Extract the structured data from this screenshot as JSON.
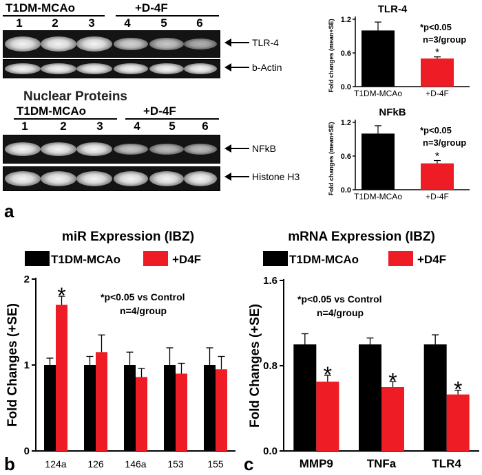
{
  "panel_a": {
    "letter": "a",
    "blot1": {
      "group_labels": [
        "T1DM-MCAo",
        "+D-4F"
      ],
      "lanes": [
        "1",
        "2",
        "3",
        "4",
        "5",
        "6"
      ],
      "bands": [
        "TLR-4",
        "b-Actin"
      ]
    },
    "blot2": {
      "title": "Nuclear Proteins",
      "group_labels": [
        "T1DM-MCAo",
        "+D-4F"
      ],
      "lanes": [
        "1",
        "2",
        "3",
        "4",
        "5",
        "6"
      ],
      "bands": [
        "NFkB",
        "Histone H3"
      ]
    }
  },
  "panel_b": {
    "letter": "b"
  },
  "panel_c": {
    "letter": "c"
  },
  "colors": {
    "control": "#000000",
    "treated": "#ee1c24"
  },
  "chart_data": [
    {
      "id": "tlr4",
      "type": "bar",
      "title": "TLR-4",
      "ylabel": "Fold changes (mean+SE)",
      "ylim": [
        0,
        1.2
      ],
      "yticks": [
        "0.0",
        "0.6",
        "1.2"
      ],
      "categories": [
        "T1DM-MCAo",
        "+D-4F"
      ],
      "values": [
        1.0,
        0.5
      ],
      "errors": [
        0.15,
        0.03
      ],
      "stars": [
        false,
        true
      ],
      "star": "*",
      "annotation": [
        "*p<0.05",
        "n=3/group"
      ]
    },
    {
      "id": "nfkb",
      "type": "bar",
      "title": "NFkB",
      "ylabel": "Fold changes (mean+SE)",
      "ylim": [
        0,
        1.2
      ],
      "yticks": [
        "0.0",
        "0.6",
        "1.2"
      ],
      "categories": [
        "T1DM-MCAo",
        "+D-4F"
      ],
      "values": [
        1.0,
        0.47
      ],
      "errors": [
        0.14,
        0.05
      ],
      "stars": [
        false,
        true
      ],
      "star": "*",
      "annotation": [
        "*p<0.05",
        "n=3/group"
      ]
    },
    {
      "id": "mir",
      "type": "bar",
      "title": "miR Expression (IBZ)",
      "ylabel": "Fold Changes (+SE)",
      "ylim": [
        0,
        2
      ],
      "yticks": [
        "0",
        "1",
        "2"
      ],
      "categories": [
        "124a",
        "126",
        "146a",
        "153",
        "155"
      ],
      "legend": [
        "T1DM-MCAo",
        "+D4F"
      ],
      "series": [
        {
          "name": "T1DM-MCAo",
          "values": [
            1.0,
            1.0,
            1.0,
            1.0,
            1.0
          ],
          "errors": [
            0.08,
            0.1,
            0.15,
            0.2,
            0.2
          ]
        },
        {
          "name": "+D4F",
          "values": [
            1.7,
            1.15,
            0.86,
            0.9,
            0.95
          ],
          "errors": [
            0.1,
            0.2,
            0.1,
            0.12,
            0.15
          ]
        }
      ],
      "stars": [
        true,
        false,
        false,
        false,
        false
      ],
      "star": "*",
      "annotation": [
        "*p<0.05 vs Control",
        "n=4/group"
      ]
    },
    {
      "id": "mrna",
      "type": "bar",
      "title": "mRNA Expression (IBZ)",
      "ylabel": "Fold Changes (+SE)",
      "ylim": [
        0,
        1.6
      ],
      "yticks": [
        "0.0",
        "0.8",
        "1.6"
      ],
      "categories": [
        "MMP9",
        "TNFa",
        "TLR4"
      ],
      "legend": [
        "T1DM-MCAo",
        "+D4F"
      ],
      "series": [
        {
          "name": "T1DM-MCAo",
          "values": [
            1.0,
            1.0,
            1.0
          ],
          "errors": [
            0.1,
            0.06,
            0.09
          ]
        },
        {
          "name": "+D4F",
          "values": [
            0.65,
            0.6,
            0.53
          ],
          "errors": [
            0.06,
            0.05,
            0.04
          ]
        }
      ],
      "stars": [
        true,
        true,
        true
      ],
      "star": "*",
      "annotation": [
        "*p<0.05 vs Control",
        "n=4/group"
      ]
    }
  ]
}
